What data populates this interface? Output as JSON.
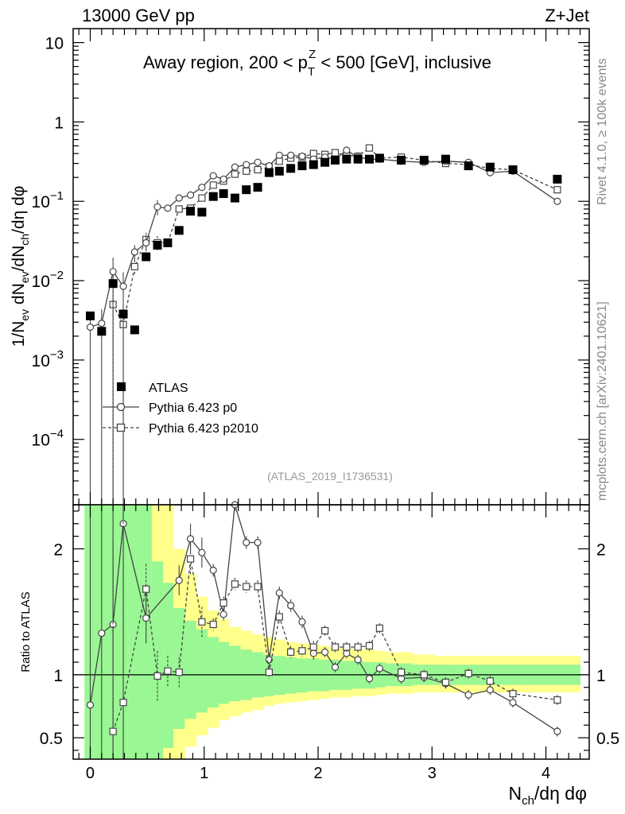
{
  "header": {
    "left": "13000 GeV pp",
    "right": "Z+Jet"
  },
  "side_labels": {
    "top": "Rivet 4.1.0, ≥ 100k events",
    "bottom": "mcplots.cern.ch [arXiv:2401.10621]"
  },
  "chart_data": {
    "type": "scatter",
    "title": "Away region, 200 < p_T^Z < 500 [GeV], inclusive",
    "title_parts": {
      "pre": "Away region, 200 < p",
      "sup": "Z",
      "sub": "T",
      "post": " < 500 [GeV], inclusive"
    },
    "analysis_id": "(ATLAS_2019_I1736531)",
    "ylabel": "1/N_ev dN_ev/dN_ch/dη dφ",
    "ylabel_parts": {
      "p1": "1/N",
      "s1": "ev",
      "p2": " dN",
      "s2": "ev",
      "p3": "/dN",
      "s3": "ch",
      "p4": "/dη dφ"
    },
    "xlabel": "N_ch/dη dφ",
    "xlabel_parts": {
      "p1": "N",
      "s1": "ch",
      "p2": "/dη dφ"
    },
    "ratio_ylabel": "Ratio to ATLAS",
    "yscale": "log",
    "ylim": [
      1.5e-05,
      15
    ],
    "xlim": [
      -0.15,
      4.38
    ],
    "ratio_ylim": [
      0.33,
      2.35
    ],
    "xticks": [
      {
        "v": 0,
        "label": "0"
      },
      {
        "v": 1,
        "label": "1"
      },
      {
        "v": 2,
        "label": "2"
      },
      {
        "v": 3,
        "label": "3"
      },
      {
        "v": 4,
        "label": "4"
      }
    ],
    "yticks": [
      {
        "v": 10,
        "base": "10",
        "exp": ""
      },
      {
        "v": 1,
        "base": "1",
        "exp": ""
      },
      {
        "v": 0.1,
        "base": "10",
        "exp": "−1"
      },
      {
        "v": 0.01,
        "base": "10",
        "exp": "−2"
      },
      {
        "v": 0.001,
        "base": "10",
        "exp": "−3"
      },
      {
        "v": 0.0001,
        "base": "10",
        "exp": "−4"
      }
    ],
    "ratio_yticks": [
      {
        "v": 0.5,
        "label": "0.5"
      },
      {
        "v": 1,
        "label": "1"
      },
      {
        "v": 2,
        "label": "2"
      }
    ],
    "legend": {
      "position": "lower-left"
    },
    "series": [
      {
        "name": "ATLAS",
        "marker": "filled-square",
        "x": [
          0.0,
          0.1,
          0.2,
          0.29,
          0.39,
          0.49,
          0.59,
          0.68,
          0.78,
          0.88,
          0.98,
          1.08,
          1.17,
          1.27,
          1.37,
          1.47,
          1.57,
          1.66,
          1.76,
          1.86,
          1.96,
          2.06,
          2.15,
          2.25,
          2.35,
          2.45,
          2.54,
          2.73,
          2.93,
          3.12,
          3.32,
          3.51,
          3.71,
          4.1
        ],
        "values": [
          0.0036,
          0.0023,
          0.0092,
          0.0038,
          0.0024,
          0.02,
          0.028,
          0.03,
          0.043,
          0.075,
          0.073,
          0.115,
          0.125,
          0.11,
          0.14,
          0.15,
          0.23,
          0.24,
          0.26,
          0.28,
          0.29,
          0.31,
          0.33,
          0.34,
          0.34,
          0.34,
          0.35,
          0.33,
          0.33,
          0.34,
          0.28,
          0.27,
          0.25,
          0.19
        ]
      },
      {
        "name": "Pythia 6.423 p0",
        "marker": "open-circle",
        "line": "solid",
        "x": [
          0.0,
          0.1,
          0.2,
          0.29,
          0.39,
          0.49,
          0.59,
          0.68,
          0.78,
          0.88,
          0.98,
          1.08,
          1.17,
          1.27,
          1.37,
          1.47,
          1.57,
          1.66,
          1.76,
          1.86,
          1.96,
          2.06,
          2.15,
          2.25,
          2.35,
          2.45,
          2.54,
          2.73,
          2.93,
          3.12,
          3.32,
          3.51,
          3.71,
          4.1
        ],
        "values": [
          0.0026,
          0.0029,
          0.013,
          0.0085,
          0.023,
          0.03,
          0.085,
          0.082,
          0.11,
          0.12,
          0.15,
          0.21,
          0.19,
          0.27,
          0.29,
          0.31,
          0.28,
          0.38,
          0.38,
          0.37,
          0.34,
          0.36,
          0.34,
          0.44,
          0.36,
          0.34,
          0.34,
          0.32,
          0.31,
          0.32,
          0.31,
          0.23,
          0.24,
          0.1
        ]
      },
      {
        "name": "Pythia 6.423 p2010",
        "marker": "open-square",
        "line": "dashed",
        "x": [
          0.2,
          0.29,
          0.39,
          0.49,
          0.59,
          0.68,
          0.78,
          0.88,
          0.98,
          1.08,
          1.17,
          1.27,
          1.37,
          1.47,
          1.57,
          1.66,
          1.76,
          1.86,
          1.96,
          2.06,
          2.15,
          2.25,
          2.35,
          2.45,
          2.54,
          2.73,
          2.93,
          3.12,
          3.32,
          3.51,
          3.71,
          4.1
        ],
        "values": [
          0.005,
          0.0028,
          0.015,
          0.033,
          0.03,
          0.03,
          0.08,
          0.082,
          0.11,
          0.16,
          0.18,
          0.22,
          0.24,
          0.25,
          0.27,
          0.32,
          0.35,
          0.36,
          0.4,
          0.39,
          0.41,
          0.38,
          0.37,
          0.47,
          0.35,
          0.36,
          0.33,
          0.3,
          0.29,
          0.26,
          0.25,
          0.14
        ]
      }
    ],
    "ratio_series": [
      {
        "name": "Pythia 6.423 p0",
        "x": [
          0.0,
          0.1,
          0.2,
          0.29,
          0.49,
          0.78,
          0.88,
          0.98,
          1.08,
          1.17,
          1.27,
          1.37,
          1.47,
          1.57,
          1.66,
          1.76,
          1.86,
          1.96,
          2.06,
          2.15,
          2.25,
          2.35,
          2.45,
          2.54,
          2.73,
          2.93,
          3.12,
          3.32,
          3.51,
          3.71,
          4.1
        ],
        "values": [
          0.76,
          1.33,
          1.4,
          2.2,
          1.45,
          1.75,
          2.08,
          1.97,
          1.83,
          1.48,
          2.35,
          2.05,
          2.05,
          1.12,
          1.65,
          1.55,
          1.42,
          1.17,
          1.18,
          1.06,
          1.17,
          1.12,
          0.97,
          1.05,
          0.97,
          0.98,
          0.93,
          0.84,
          0.88,
          0.78,
          0.55
        ]
      },
      {
        "name": "Pythia 6.423 p2010",
        "x": [
          0.2,
          0.29,
          0.49,
          0.59,
          0.68,
          0.78,
          0.88,
          0.98,
          1.08,
          1.17,
          1.27,
          1.37,
          1.47,
          1.57,
          1.66,
          1.76,
          1.86,
          1.96,
          2.06,
          2.15,
          2.25,
          2.35,
          2.45,
          2.54,
          2.73,
          2.93,
          3.12,
          3.32,
          3.51,
          3.71,
          4.1
        ],
        "values": [
          0.55,
          0.78,
          1.68,
          0.99,
          1.03,
          1.02,
          1.92,
          1.42,
          1.4,
          1.57,
          1.72,
          1.7,
          1.7,
          1.02,
          1.46,
          1.18,
          1.19,
          1.22,
          1.35,
          1.22,
          1.22,
          1.22,
          1.23,
          1.37,
          1.02,
          1.0,
          0.94,
          1.01,
          0.95,
          0.85,
          0.8
        ]
      }
    ],
    "ratio_bands": {
      "x_edges": [
        -0.05,
        0.05,
        0.15,
        0.25,
        0.34,
        0.44,
        0.54,
        0.64,
        0.73,
        0.83,
        0.93,
        1.03,
        1.13,
        1.22,
        1.32,
        1.42,
        1.52,
        1.61,
        1.71,
        1.81,
        1.91,
        2.01,
        2.1,
        2.2,
        2.3,
        2.4,
        2.5,
        2.59,
        2.83,
        3.02,
        3.22,
        3.42,
        3.61,
        3.81,
        4.3
      ],
      "green_lo": [
        0.33,
        0.33,
        0.33,
        0.33,
        0.33,
        0.33,
        0.33,
        0.42,
        0.57,
        0.65,
        0.7,
        0.74,
        0.77,
        0.79,
        0.8,
        0.82,
        0.83,
        0.84,
        0.85,
        0.86,
        0.87,
        0.87,
        0.88,
        0.88,
        0.89,
        0.89,
        0.9,
        0.91,
        0.92,
        0.92,
        0.92,
        0.92,
        0.92,
        0.92
      ],
      "green_hi": [
        2.35,
        2.35,
        2.35,
        2.35,
        2.35,
        2.35,
        1.9,
        1.73,
        1.53,
        1.43,
        1.36,
        1.3,
        1.26,
        1.23,
        1.2,
        1.18,
        1.16,
        1.15,
        1.14,
        1.13,
        1.13,
        1.12,
        1.12,
        1.11,
        1.11,
        1.1,
        1.1,
        1.09,
        1.08,
        1.08,
        1.08,
        1.08,
        1.08,
        1.08
      ],
      "yellow_lo": [
        0.33,
        0.33,
        0.33,
        0.33,
        0.33,
        0.33,
        0.33,
        0.33,
        0.33,
        0.43,
        0.52,
        0.58,
        0.64,
        0.67,
        0.7,
        0.72,
        0.75,
        0.77,
        0.78,
        0.79,
        0.8,
        0.81,
        0.82,
        0.82,
        0.83,
        0.83,
        0.84,
        0.85,
        0.86,
        0.86,
        0.86,
        0.86,
        0.86,
        0.86
      ],
      "yellow_hi": [
        2.35,
        2.35,
        2.35,
        2.35,
        2.35,
        2.35,
        2.35,
        2.35,
        2.0,
        1.8,
        1.62,
        1.51,
        1.44,
        1.38,
        1.35,
        1.32,
        1.3,
        1.28,
        1.26,
        1.25,
        1.24,
        1.23,
        1.22,
        1.21,
        1.2,
        1.2,
        1.19,
        1.18,
        1.16,
        1.15,
        1.15,
        1.15,
        1.15,
        1.15
      ]
    }
  }
}
